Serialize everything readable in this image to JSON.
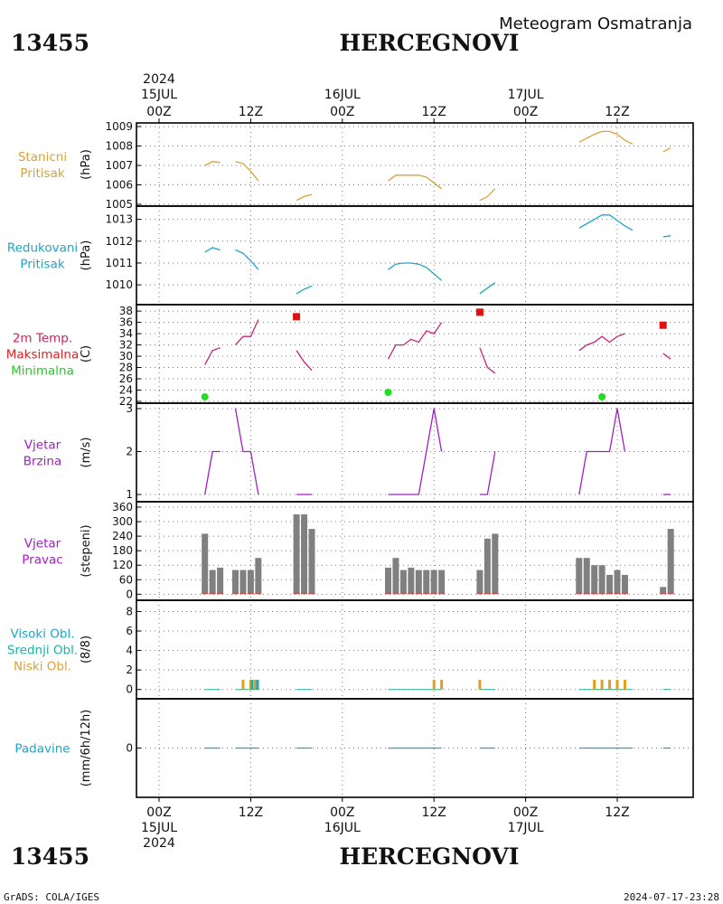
{
  "header": {
    "station_id": "13455",
    "station_name": "HERCEGNOVI",
    "product": "Meteogram Osmatranja"
  },
  "footer": {
    "credit": "GrADS: COLA/IGES",
    "generated": "2024-07-17-23:28"
  },
  "time_axis": {
    "year": "2024",
    "hour_labels": [
      "00Z",
      "12Z",
      "00Z",
      "12Z",
      "00Z",
      "12Z"
    ],
    "hour_values": [
      0,
      12,
      24,
      36,
      48,
      60
    ],
    "date_labels": [
      "15JUL",
      "16JUL",
      "17JUL"
    ],
    "date_values": [
      0,
      24,
      48
    ]
  },
  "chart_data": [
    {
      "id": "stanicni",
      "type": "line",
      "title_lines": [
        "Stanicni",
        "Pritisak"
      ],
      "title_colors": [
        "#d8a23a",
        "#d8a23a"
      ],
      "ylabel": "(hPa)",
      "ylim": [
        1005,
        1009
      ],
      "yticks": [
        1005,
        1006,
        1007,
        1008,
        1009
      ],
      "color": "#d8a23a",
      "segments": [
        [
          [
            6,
            1007.0
          ],
          [
            7,
            1007.2
          ],
          [
            8,
            1007.15
          ]
        ],
        [
          [
            10,
            1007.2
          ],
          [
            11,
            1007.1
          ],
          [
            12,
            1006.7
          ],
          [
            13,
            1006.2
          ]
        ],
        [
          [
            18,
            1005.2
          ],
          [
            19,
            1005.4
          ],
          [
            20,
            1005.5
          ]
        ],
        [
          [
            30,
            1006.2
          ],
          [
            31,
            1006.5
          ],
          [
            32,
            1006.5
          ],
          [
            33,
            1006.5
          ],
          [
            34,
            1006.5
          ],
          [
            35,
            1006.4
          ],
          [
            36,
            1006.1
          ],
          [
            37,
            1005.8
          ]
        ],
        [
          [
            42,
            1005.2
          ],
          [
            43,
            1005.4
          ],
          [
            44,
            1005.8
          ]
        ],
        [
          [
            55,
            1008.2
          ],
          [
            56,
            1008.4
          ],
          [
            57,
            1008.6
          ],
          [
            58,
            1008.75
          ],
          [
            59,
            1008.75
          ],
          [
            60,
            1008.6
          ],
          [
            61,
            1008.3
          ],
          [
            62,
            1008.1
          ]
        ],
        [
          [
            66,
            1007.7
          ],
          [
            67,
            1007.9
          ]
        ]
      ]
    },
    {
      "id": "redukovani",
      "type": "line",
      "title_lines": [
        "Redukovani",
        "Pritisak"
      ],
      "title_colors": [
        "#1ea6c8",
        "#1ea6c8"
      ],
      "ylabel": "(hPa)",
      "ylim": [
        1009.3,
        1013.4
      ],
      "yticks": [
        1010,
        1011,
        1012,
        1013
      ],
      "color": "#1ea6c8",
      "segments": [
        [
          [
            6,
            1011.5
          ],
          [
            7,
            1011.7
          ],
          [
            8,
            1011.6
          ]
        ],
        [
          [
            10,
            1011.6
          ],
          [
            11,
            1011.45
          ],
          [
            12,
            1011.1
          ],
          [
            13,
            1010.7
          ]
        ],
        [
          [
            18,
            1009.6
          ],
          [
            19,
            1009.8
          ],
          [
            20,
            1009.95
          ]
        ],
        [
          [
            30,
            1010.7
          ],
          [
            31,
            1010.95
          ],
          [
            32,
            1011.0
          ],
          [
            33,
            1011.0
          ],
          [
            34,
            1010.95
          ],
          [
            35,
            1010.8
          ],
          [
            36,
            1010.5
          ],
          [
            37,
            1010.2
          ]
        ],
        [
          [
            42,
            1009.6
          ],
          [
            43,
            1009.85
          ],
          [
            44,
            1010.1
          ]
        ],
        [
          [
            55,
            1012.6
          ],
          [
            56,
            1012.8
          ],
          [
            57,
            1013.0
          ],
          [
            58,
            1013.2
          ],
          [
            59,
            1013.2
          ],
          [
            60,
            1012.95
          ],
          [
            61,
            1012.7
          ],
          [
            62,
            1012.5
          ]
        ],
        [
          [
            66,
            1012.2
          ],
          [
            67,
            1012.25
          ]
        ]
      ]
    },
    {
      "id": "temperatura",
      "type": "line",
      "title_lines": [
        "2m Temp.",
        "Maksimalna",
        "Minimalna"
      ],
      "title_colors": [
        "#d81b60",
        "#e02020",
        "#22cc22"
      ],
      "ylabel": "(C)",
      "ylim": [
        22,
        38.5
      ],
      "yticks": [
        22,
        24,
        26,
        28,
        30,
        32,
        34,
        36,
        38
      ],
      "color": "#c8247a",
      "segments": [
        [
          [
            6,
            28.5
          ],
          [
            7,
            31.0
          ],
          [
            8,
            31.5
          ]
        ],
        [
          [
            10,
            32.0
          ],
          [
            11,
            33.5
          ],
          [
            12,
            33.5
          ],
          [
            13,
            36.5
          ]
        ],
        [
          [
            18,
            31.0
          ],
          [
            19,
            29.0
          ],
          [
            20,
            27.5
          ]
        ],
        [
          [
            30,
            29.5
          ],
          [
            31,
            32.0
          ],
          [
            32,
            32.0
          ],
          [
            33,
            33.0
          ],
          [
            34,
            32.5
          ],
          [
            35,
            34.5
          ],
          [
            36,
            34.0
          ],
          [
            37,
            36.0
          ]
        ],
        [
          [
            42,
            31.5
          ],
          [
            43,
            28.0
          ],
          [
            44,
            27.0
          ]
        ],
        [
          [
            55,
            31.0
          ],
          [
            56,
            32.0
          ],
          [
            57,
            32.5
          ],
          [
            58,
            33.5
          ],
          [
            59,
            32.5
          ],
          [
            60,
            33.5
          ],
          [
            61,
            34.0
          ]
        ],
        [
          [
            66,
            30.5
          ],
          [
            67,
            29.5
          ]
        ]
      ],
      "max_points": [
        [
          18,
          37.0
        ],
        [
          42,
          37.8
        ],
        [
          66,
          35.5
        ]
      ],
      "max_color": "#e01010",
      "min_points": [
        [
          6,
          22.8
        ],
        [
          30,
          23.6
        ],
        [
          58,
          22.8
        ]
      ],
      "min_color": "#22dd22"
    },
    {
      "id": "vjetar_brzina",
      "type": "line",
      "title_lines": [
        "Vjetar",
        "Brzina"
      ],
      "title_colors": [
        "#a020c0",
        "#a020c0"
      ],
      "ylabel": "(m/s)",
      "ylim": [
        1,
        3
      ],
      "yticks": [
        1,
        2,
        3
      ],
      "color": "#a020c0",
      "segments": [
        [
          [
            6,
            1
          ],
          [
            7,
            2
          ],
          [
            8,
            2
          ]
        ],
        [
          [
            10,
            3
          ],
          [
            11,
            2
          ],
          [
            12,
            2
          ],
          [
            13,
            1
          ]
        ],
        [
          [
            18,
            1
          ],
          [
            19,
            1
          ],
          [
            20,
            1
          ]
        ],
        [
          [
            30,
            1
          ],
          [
            31,
            1
          ],
          [
            32,
            1
          ],
          [
            33,
            1
          ],
          [
            34,
            1
          ],
          [
            35,
            2
          ],
          [
            36,
            3
          ],
          [
            37,
            2
          ]
        ],
        [
          [
            42,
            1
          ],
          [
            43,
            1
          ],
          [
            44,
            2
          ]
        ],
        [
          [
            55,
            1
          ],
          [
            56,
            2
          ],
          [
            57,
            2
          ],
          [
            58,
            2
          ],
          [
            59,
            2
          ],
          [
            60,
            3
          ],
          [
            61,
            2
          ]
        ],
        [
          [
            66,
            1
          ],
          [
            67,
            1
          ]
        ]
      ]
    },
    {
      "id": "vjetar_pravac",
      "type": "bar",
      "title_lines": [
        "Vjetar",
        "Pravac"
      ],
      "title_colors": [
        "#a020c0",
        "#a020c0"
      ],
      "ylabel": "(stepeni)",
      "ylim": [
        -10,
        360
      ],
      "yticks": [
        0,
        60,
        120,
        180,
        240,
        300,
        360
      ],
      "color": "#808080",
      "base_color": "#c05050",
      "x": [
        6,
        7,
        8,
        10,
        11,
        12,
        13,
        18,
        19,
        20,
        30,
        31,
        32,
        33,
        34,
        35,
        36,
        37,
        42,
        43,
        44,
        55,
        56,
        57,
        58,
        59,
        60,
        61,
        66,
        67
      ],
      "values": [
        250,
        100,
        110,
        100,
        100,
        100,
        150,
        330,
        330,
        270,
        110,
        150,
        100,
        110,
        100,
        100,
        100,
        100,
        100,
        230,
        250,
        150,
        150,
        120,
        120,
        80,
        100,
        80,
        30,
        270
      ]
    },
    {
      "id": "oblaci",
      "type": "bar",
      "title_lines": [
        "Visoki Obl.",
        "Srednji Obl.",
        "Niski Obl."
      ],
      "title_colors": [
        "#1ea6c8",
        "#20b0a0",
        "#d8a23a"
      ],
      "ylabel": "(8/8)",
      "ylim": [
        -0.4,
        8.6
      ],
      "yticks": [
        0,
        2,
        4,
        6,
        8
      ],
      "trace_color": "#20b0a0",
      "trace_x": [
        [
          6,
          8
        ],
        [
          10,
          13
        ],
        [
          18,
          20
        ],
        [
          30,
          37
        ],
        [
          42,
          44
        ],
        [
          55,
          62
        ],
        [
          66,
          67
        ]
      ],
      "series": [
        {
          "name": "Niski Obl.",
          "color": "#e0a020",
          "x": [
            11,
            12,
            12.6,
            36,
            37,
            42,
            57,
            58,
            59,
            60,
            61
          ],
          "values": [
            1,
            1,
            1,
            1,
            1,
            1,
            1,
            1,
            1,
            1,
            1
          ]
        },
        {
          "name": "Srednji Obl.",
          "color": "#20b0a0",
          "x": [
            12.2
          ],
          "values": [
            1
          ]
        },
        {
          "name": "Visoki Obl.",
          "color": "#1ea6c8",
          "x": [
            12.9
          ],
          "values": [
            1
          ]
        }
      ]
    },
    {
      "id": "padavine",
      "type": "line",
      "title_lines": [
        "Padavine"
      ],
      "title_colors": [
        "#1ea6c8"
      ],
      "ylabel": "(mm/6h/12h)",
      "ylim": [
        -1,
        1
      ],
      "yticks": [
        0
      ],
      "color": "#1ea6c8",
      "segments": [
        [
          [
            6,
            0
          ],
          [
            7,
            0
          ],
          [
            8,
            0
          ]
        ],
        [
          [
            10,
            0
          ],
          [
            11,
            0
          ],
          [
            12,
            0
          ],
          [
            13,
            0
          ]
        ],
        [
          [
            18,
            0
          ],
          [
            19,
            0
          ],
          [
            20,
            0
          ]
        ],
        [
          [
            30,
            0
          ],
          [
            31,
            0
          ],
          [
            32,
            0
          ],
          [
            33,
            0
          ],
          [
            34,
            0
          ],
          [
            35,
            0
          ],
          [
            36,
            0
          ],
          [
            37,
            0
          ]
        ],
        [
          [
            42,
            0
          ],
          [
            43,
            0
          ],
          [
            44,
            0
          ]
        ],
        [
          [
            55,
            0
          ],
          [
            56,
            0
          ],
          [
            57,
            0
          ],
          [
            58,
            0
          ],
          [
            59,
            0
          ],
          [
            60,
            0
          ],
          [
            61,
            0
          ],
          [
            62,
            0
          ]
        ],
        [
          [
            66,
            0
          ],
          [
            67,
            0
          ]
        ]
      ]
    }
  ]
}
